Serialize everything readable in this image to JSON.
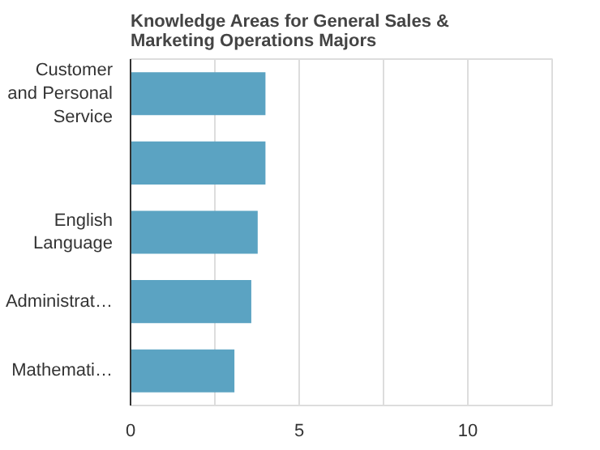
{
  "chart_data": {
    "type": "bar",
    "orientation": "horizontal",
    "title": "Knowledge Areas for General Sales &\nMarketing Operations Majors",
    "categories": [
      "Customer\nand Personal\nService",
      null,
      "English\nLanguage",
      "Administrat…",
      "Mathemati…"
    ],
    "values": [
      4.0,
      4.0,
      3.77,
      3.58,
      3.08
    ],
    "color": "#5ba3c2",
    "xlim": [
      0,
      12.5
    ],
    "xticks": [
      0,
      {
        "value": 2.5,
        "label": null
      },
      5,
      {
        "value": 7.5,
        "label": null
      },
      10
    ],
    "grid": "x"
  }
}
